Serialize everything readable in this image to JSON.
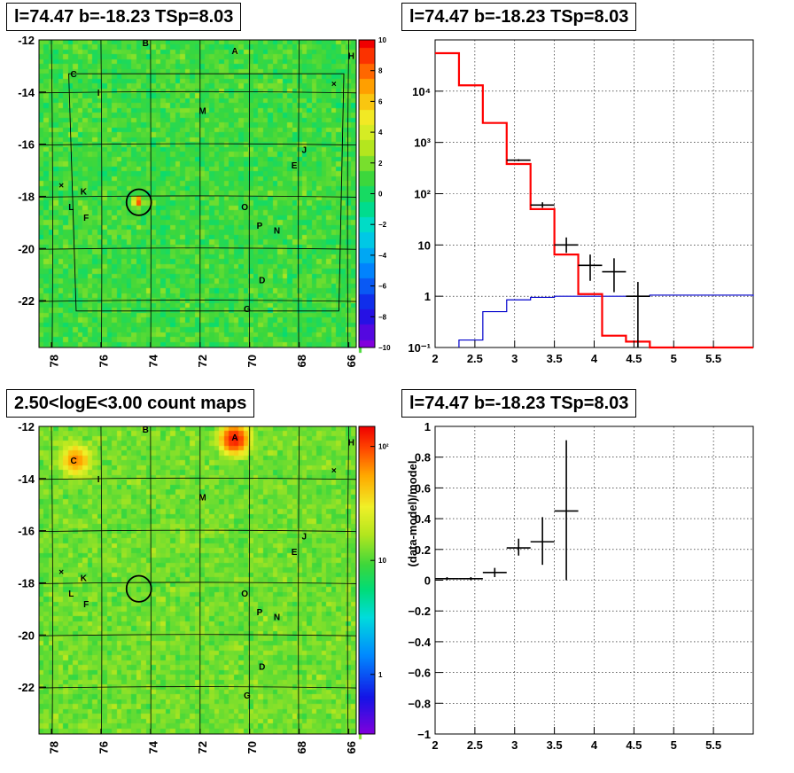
{
  "panels": {
    "tl_title": "l=74.47 b=-18.23 TSp=8.03",
    "tr_title": "l=74.47 b=-18.23 TSp=8.03",
    "bl_title": "2.50<logE<3.00 count maps",
    "br_title": "l=74.47 b=-18.23 TSp=8.03"
  },
  "colors": {
    "model": "#ff0000",
    "data": "#000000",
    "background_line": "#0000cc"
  },
  "chart_data": [
    {
      "name": "tl",
      "type": "heatmap",
      "xlim": [
        78.5,
        65.7
      ],
      "ylim": [
        -23.8,
        -12
      ],
      "xticks": [
        78,
        76,
        74,
        72,
        70,
        68,
        66
      ],
      "xtick_labels": [
        "78",
        "76",
        "74",
        "72",
        "70",
        "68",
        "66"
      ],
      "yticks": [
        -12,
        -14,
        -16,
        -18,
        -20,
        -22
      ],
      "ytick_labels": [
        "-12",
        "-14",
        "-16",
        "-18",
        "-20",
        "-22"
      ],
      "zlim": [
        -10,
        10
      ],
      "colorbar_ticks": [
        "10",
        "8",
        "6",
        "4",
        "2",
        "0",
        "−2",
        "−4",
        "−6",
        "−8",
        "−10"
      ],
      "base_value": 1,
      "circle": {
        "l": 74.47,
        "b": -18.23,
        "r": 0.5
      },
      "hot_spot": {
        "l": 74.5,
        "b": -18.2,
        "value": 8
      }
    },
    {
      "name": "tr",
      "type": "line",
      "xlim": [
        2,
        6
      ],
      "ylim": [
        0.1,
        100000
      ],
      "yscale": "log",
      "grid": true,
      "xtick_labels": [
        "2",
        "2.5",
        "3",
        "3.5",
        "4",
        "4.5",
        "5",
        "5.5"
      ],
      "ytick_labels": [
        "10⁻¹",
        "1",
        "10",
        "10²",
        "10³",
        "10⁴"
      ],
      "model_edges": [
        2,
        2.3,
        2.6,
        2.9,
        3.2,
        3.5,
        3.8,
        4.1,
        4.4,
        4.7,
        6
      ],
      "model_values": [
        55000,
        13000,
        2400,
        380,
        50,
        6.5,
        1.1,
        0.17,
        0.13,
        0.1
      ],
      "background_edges": [
        2.3,
        2.6,
        2.9,
        3.2,
        3.5,
        4.4,
        4.7,
        6
      ],
      "background_values": [
        0.14,
        0.5,
        0.85,
        0.95,
        1.0,
        1.0,
        1.05,
        1.0
      ],
      "data_points": [
        {
          "x": 3.05,
          "y": 450,
          "xerr": 0.15,
          "ylo": 430,
          "yhi": 470
        },
        {
          "x": 3.35,
          "y": 60,
          "xerr": 0.15,
          "ylo": 53,
          "yhi": 68
        },
        {
          "x": 3.65,
          "y": 10,
          "xerr": 0.15,
          "ylo": 7,
          "yhi": 14
        },
        {
          "x": 3.95,
          "y": 4,
          "xerr": 0.15,
          "ylo": 2,
          "yhi": 6.5
        },
        {
          "x": 4.25,
          "y": 3,
          "xerr": 0.15,
          "ylo": 1.2,
          "yhi": 5.5
        },
        {
          "x": 4.55,
          "y": 1,
          "xerr": 0.15,
          "ylo": 0.1,
          "yhi": 1.9
        }
      ]
    },
    {
      "name": "bl",
      "type": "heatmap",
      "xlim": [
        78.5,
        65.7
      ],
      "ylim": [
        -23.8,
        -12
      ],
      "xticks": [
        78,
        76,
        74,
        72,
        70,
        68,
        66
      ],
      "xtick_labels": [
        "78",
        "76",
        "74",
        "72",
        "70",
        "68",
        "66"
      ],
      "yticks": [
        -12,
        -14,
        -16,
        -18,
        -20,
        -22
      ],
      "ytick_labels": [
        "-12",
        "-14",
        "-16",
        "-18",
        "-20",
        "-22"
      ],
      "zscale": "log",
      "zlim": [
        0.3,
        150
      ],
      "colorbar_ticks": [
        "10²",
        "10",
        "1"
      ],
      "base_value": 12,
      "circle": {
        "l": 74.47,
        "b": -18.23,
        "r": 0.5
      },
      "hot_spots": [
        {
          "l": 70.6,
          "b": -12.5,
          "value": 120
        },
        {
          "l": 77.0,
          "b": -13.3,
          "value": 55
        }
      ]
    },
    {
      "name": "br",
      "type": "scatter",
      "xlim": [
        2,
        6
      ],
      "ylim": [
        -1,
        1
      ],
      "grid": true,
      "ylabel": "(data-model)/model",
      "xtick_labels": [
        "2",
        "2.5",
        "3",
        "3.5",
        "4",
        "4.5",
        "5",
        "5.5"
      ],
      "ytick_labels": [
        "1",
        "0.8",
        "0.6",
        "0.4",
        "0.2",
        "0",
        "−0.2",
        "−0.4",
        "−0.6",
        "−0.8",
        "−1"
      ],
      "points": [
        {
          "x": 2.15,
          "y": 0.01,
          "xerr": 0.15,
          "ylo": 0.0,
          "yhi": 0.02
        },
        {
          "x": 2.45,
          "y": 0.01,
          "xerr": 0.15,
          "ylo": 0.0,
          "yhi": 0.02
        },
        {
          "x": 2.75,
          "y": 0.05,
          "xerr": 0.15,
          "ylo": 0.02,
          "yhi": 0.08
        },
        {
          "x": 3.05,
          "y": 0.21,
          "xerr": 0.15,
          "ylo": 0.16,
          "yhi": 0.27
        },
        {
          "x": 3.35,
          "y": 0.25,
          "xerr": 0.15,
          "ylo": 0.1,
          "yhi": 0.41
        },
        {
          "x": 3.65,
          "y": 0.45,
          "xerr": 0.15,
          "ylo": 0.0,
          "yhi": 0.91
        }
      ]
    }
  ],
  "sources": {
    "labels": [
      "A",
      "B",
      "C",
      "D",
      "E",
      "F",
      "G",
      "H",
      "I",
      "J",
      "K",
      "L",
      "M",
      "N",
      "O",
      "P"
    ],
    "l": [
      70.6,
      74.2,
      77.1,
      69.5,
      68.2,
      76.6,
      70.1,
      65.9,
      76.1,
      67.8,
      76.7,
      77.2,
      71.9,
      68.9,
      70.2,
      69.6
    ],
    "b": [
      -12.4,
      -12.1,
      -13.3,
      -21.2,
      -16.8,
      -18.8,
      -22.3,
      -12.6,
      -14.0,
      -16.2,
      -17.8,
      -18.4,
      -14.7,
      -19.3,
      -18.4,
      -19.1
    ]
  },
  "crosses": {
    "l": [
      77.6,
      66.6
    ],
    "b": [
      -17.6,
      -13.7
    ]
  }
}
